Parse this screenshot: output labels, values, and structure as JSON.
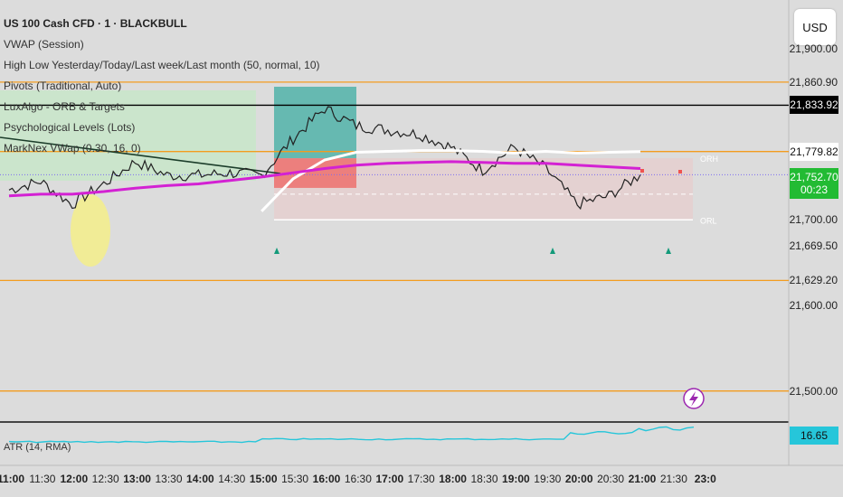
{
  "currency_button": "USD",
  "legend": {
    "title": "US 100 Cash CFD · 1 · BLACKBULL",
    "items": [
      "VWAP (Session)",
      "High Low Yesterday/Today/Last week/Last month (50, normal, 10)",
      "Pivots (Traditional, Auto)",
      "LuxAlgo - ORB & Targets",
      "Psychological Levels (Lots)",
      "MarkNex VWap (0.30, 16, 0)"
    ],
    "atr": "ATR (14, RMA)"
  },
  "orb_labels": {
    "high": "ORH",
    "low": "ORL"
  },
  "price_axis": {
    "ticks": [
      {
        "label": "21,900.00",
        "value": 21900
      },
      {
        "label": "21,700.00",
        "value": 21700
      },
      {
        "label": "21,600.00",
        "value": 21600
      },
      {
        "label": "21,500.00",
        "value": 21500
      }
    ],
    "levels": [
      {
        "label": "21,860.90",
        "value": 21860.9
      },
      {
        "label": "21,669.50",
        "value": 21669.5
      },
      {
        "label": "21,629.20",
        "value": 21629.2
      }
    ],
    "tags": [
      {
        "name": "black-level",
        "label": "21,833.92",
        "value": 21833.92,
        "bg": "#000000",
        "fg": "#ffffff"
      },
      {
        "name": "vwap-level",
        "label": "21,779.82",
        "value": 21779.82,
        "bg": "#ffffff",
        "fg": "#111111"
      },
      {
        "name": "last-price",
        "label": "21,752.70",
        "value": 21752.7,
        "bg": "#22bb33",
        "fg": "#ffffff",
        "sub": "00:23"
      }
    ],
    "atr_tag": {
      "label": "16.65",
      "bg": "#26c6da",
      "fg": "#111111"
    }
  },
  "time_axis": [
    {
      "label": "11:00",
      "bold": true
    },
    {
      "label": "11:30"
    },
    {
      "label": "12:00",
      "bold": true
    },
    {
      "label": "12:30"
    },
    {
      "label": "13:00",
      "bold": true
    },
    {
      "label": "13:30"
    },
    {
      "label": "14:00",
      "bold": true
    },
    {
      "label": "14:30"
    },
    {
      "label": "15:00",
      "bold": true
    },
    {
      "label": "15:30"
    },
    {
      "label": "16:00",
      "bold": true
    },
    {
      "label": "16:30"
    },
    {
      "label": "17:00",
      "bold": true
    },
    {
      "label": "17:30"
    },
    {
      "label": "18:00",
      "bold": true
    },
    {
      "label": "18:30"
    },
    {
      "label": "19:00",
      "bold": true
    },
    {
      "label": "19:30"
    },
    {
      "label": "20:00",
      "bold": true
    },
    {
      "label": "20:30"
    },
    {
      "label": "21:00",
      "bold": true
    },
    {
      "label": "21:30"
    },
    {
      "label": "23:0",
      "bold": true
    }
  ],
  "colors": {
    "orange_line": "#f39c1f",
    "magenta_vwap": "#d321d3",
    "white_line": "#ffffff",
    "green_zone": "#c8e6c9",
    "teal_box": "#26a69a",
    "red_box": "#ef5350",
    "atr_line": "#26c6da",
    "candles": "#222222"
  },
  "chart_data": {
    "type": "line",
    "title": "US 100 Cash CFD · 1 · BLACKBULL",
    "x": [
      "11:00",
      "11:30",
      "12:00",
      "12:30",
      "13:00",
      "13:30",
      "14:00",
      "14:30",
      "15:00",
      "15:30",
      "16:00",
      "16:30",
      "17:00",
      "17:30",
      "18:00",
      "18:30",
      "19:00",
      "19:30",
      "20:00",
      "20:30",
      "20:45"
    ],
    "series": [
      {
        "name": "US 100 Cash CFD",
        "values": [
          21735,
          21745,
          21718,
          21742,
          21768,
          21752,
          21752,
          21755,
          21752,
          21795,
          21830,
          21810,
          21805,
          21800,
          21785,
          21758,
          21785,
          21760,
          21718,
          21728,
          21752.7
        ]
      },
      {
        "name": "VWAP (Session)",
        "values": [
          null,
          null,
          null,
          null,
          null,
          null,
          null,
          null,
          21710,
          21748,
          21770,
          21779,
          21780,
          21781,
          21781,
          21780,
          21778,
          21780,
          21778,
          21779,
          21779.82
        ]
      },
      {
        "name": "MarkNex VWap (0.30, 16, 0)",
        "values": [
          21728,
          21730,
          21730,
          21733,
          21737,
          21740,
          21742,
          21746,
          21750,
          21755,
          21760,
          21764,
          21766,
          21767,
          21768,
          21767,
          21766,
          21766,
          21764,
          21762,
          21760
        ]
      }
    ],
    "levels": [
      21860.9,
      21833.92,
      21779.82,
      21629.2,
      21500
    ],
    "orb": {
      "high": 21772,
      "low": 21700
    },
    "ylim": [
      21460,
      21930
    ],
    "atr": {
      "name": "ATR (14, RMA)",
      "last": 16.65
    }
  }
}
